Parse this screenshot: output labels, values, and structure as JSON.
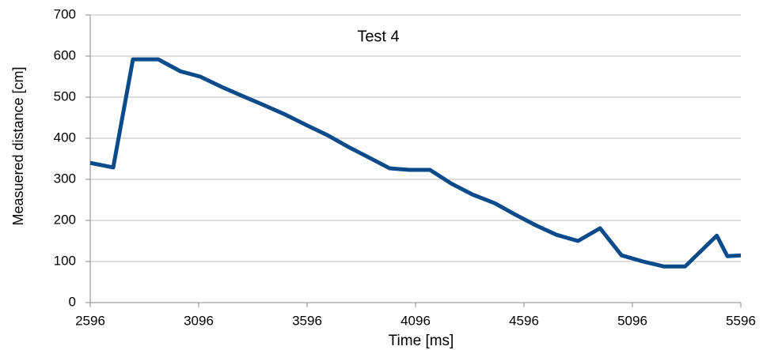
{
  "chart_data": {
    "type": "line",
    "title": "Test 4",
    "x_label": "Time [ms]",
    "y_label": "Measuered distance [cm]",
    "series": [
      {
        "color": "#0b4a8b",
        "x": [
          2596,
          2702,
          2793,
          2910,
          3012,
          3103,
          3202,
          3293,
          3395,
          3494,
          3597,
          3688,
          3786,
          3878,
          3976,
          4067,
          4163,
          4260,
          4359,
          4461,
          4553,
          4651,
          4746,
          4845,
          4947,
          5046,
          5145,
          5240,
          5339,
          5485,
          5534,
          5596
        ],
        "values": [
          340,
          329,
          592,
          592,
          563,
          550,
          525,
          504,
          481,
          458,
          431,
          408,
          379,
          354,
          327,
          323,
          323,
          290,
          263,
          242,
          215,
          188,
          165,
          150,
          181,
          115,
          100,
          88,
          88,
          163,
          113,
          115
        ]
      }
    ],
    "xlim": [
      2596,
      5596
    ],
    "xticks": [
      2596,
      3096,
      3596,
      4096,
      4596,
      5096,
      5596
    ],
    "ylim": [
      0,
      700
    ],
    "yticks": [
      0,
      100,
      200,
      300,
      400,
      500,
      600,
      700
    ],
    "grid": true
  }
}
